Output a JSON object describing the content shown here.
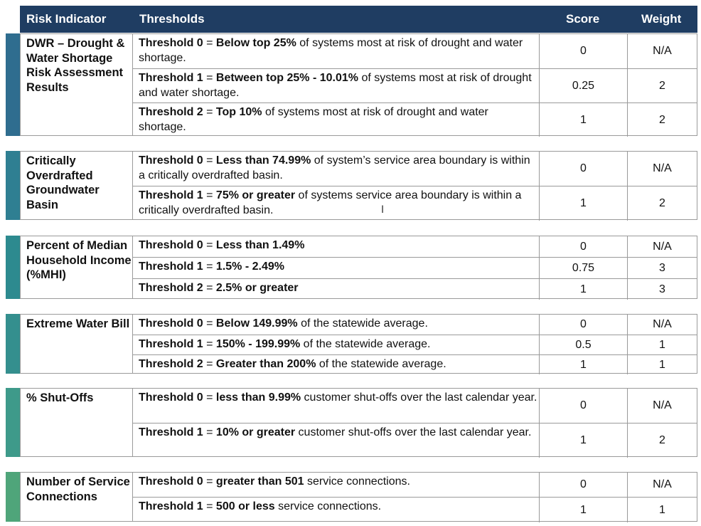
{
  "header": {
    "col_indicator": "Risk Indicator",
    "col_thresholds": "Thresholds",
    "col_score": "Score",
    "col_weight": "Weight"
  },
  "colors": {
    "header_bg": "#1f3d62",
    "accents": [
      "#2f6d8f",
      "#2f7f92",
      "#2d8a8f",
      "#348f8e",
      "#3e9a8a",
      "#4fa57a"
    ]
  },
  "groups": [
    {
      "indicator": "DWR – Drought & Water Shortage Risk Assessment Results",
      "rows": [
        {
          "label": "Threshold 0",
          "eq": " = ",
          "bold": "Below top 25%",
          "rest": " of systems most at risk of drought and water shortage.",
          "score": "0",
          "weight": "N/A"
        },
        {
          "label": "Threshold 1",
          "eq": " = ",
          "bold": "Between top 25% - 10.01%",
          "rest": " of systems most at risk of drought and water shortage.",
          "score": "0.25",
          "weight": "2"
        },
        {
          "label": "Threshold 2",
          "eq": " = ",
          "bold": "Top 10%",
          "rest": " of systems most at risk of drought and water shortage.",
          "score": "1",
          "weight": "2"
        }
      ]
    },
    {
      "indicator": "Critically Overdrafted Groundwater Basin",
      "rows": [
        {
          "label": "Threshold 0",
          "eq": " = ",
          "bold": "Less than 74.99%",
          "rest": " of system’s service area boundary is within a critically overdrafted basin.",
          "score": "0",
          "weight": "N/A"
        },
        {
          "label": "Threshold 1",
          "eq": " = ",
          "bold": "75% or greater",
          "rest": " of systems service area boundary is within a critically overdrafted basin.",
          "score": "1",
          "weight": "2"
        }
      ]
    },
    {
      "indicator": "Percent of Median Household Income (%MHI)",
      "rows": [
        {
          "label": "Threshold 0",
          "eq": " = ",
          "bold": "Less than 1.49%",
          "rest": "",
          "score": "0",
          "weight": "N/A"
        },
        {
          "label": "Threshold 1",
          "eq": " = ",
          "bold": "1.5% - 2.49%",
          "rest": "",
          "score": "0.75",
          "weight": "3"
        },
        {
          "label": "Threshold 2",
          "eq": " = ",
          "bold": "2.5% or greater",
          "rest": "",
          "score": "1",
          "weight": "3"
        }
      ]
    },
    {
      "indicator": "Extreme Water Bill",
      "rows": [
        {
          "label": "Threshold 0",
          "eq": " = ",
          "bold": "Below 149.99%",
          "rest": " of the statewide average.",
          "score": "0",
          "weight": "N/A"
        },
        {
          "label": "Threshold 1",
          "eq": " = ",
          "bold": "150% - 199.99%",
          "rest": " of the statewide average.",
          "score": "0.5",
          "weight": "1"
        },
        {
          "label": "Threshold 2",
          "eq": " = ",
          "bold": "Greater than 200%",
          "rest": " of the statewide average.",
          "score": "1",
          "weight": "1"
        }
      ]
    },
    {
      "indicator": "% Shut-Offs",
      "rows": [
        {
          "label": "Threshold 0",
          "eq": " = ",
          "bold": "less than 9.99%",
          "rest": " customer shut-offs over the last calendar year.",
          "score": "0",
          "weight": "N/A"
        },
        {
          "label": "Threshold 1",
          "eq": " = ",
          "bold": "10% or greater",
          "rest": " customer shut-offs over the last calendar year.",
          "score": "1",
          "weight": "2"
        }
      ]
    },
    {
      "indicator": "Number of Service Connections",
      "rows": [
        {
          "label": "Threshold 0",
          "eq": " = ",
          "bold": "greater than 501",
          "rest": " service connections.",
          "score": "0",
          "weight": "N/A"
        },
        {
          "label": "Threshold 1",
          "eq": " = ",
          "bold": "500 or less",
          "rest": " service connections.",
          "score": "1",
          "weight": "1"
        }
      ]
    }
  ]
}
